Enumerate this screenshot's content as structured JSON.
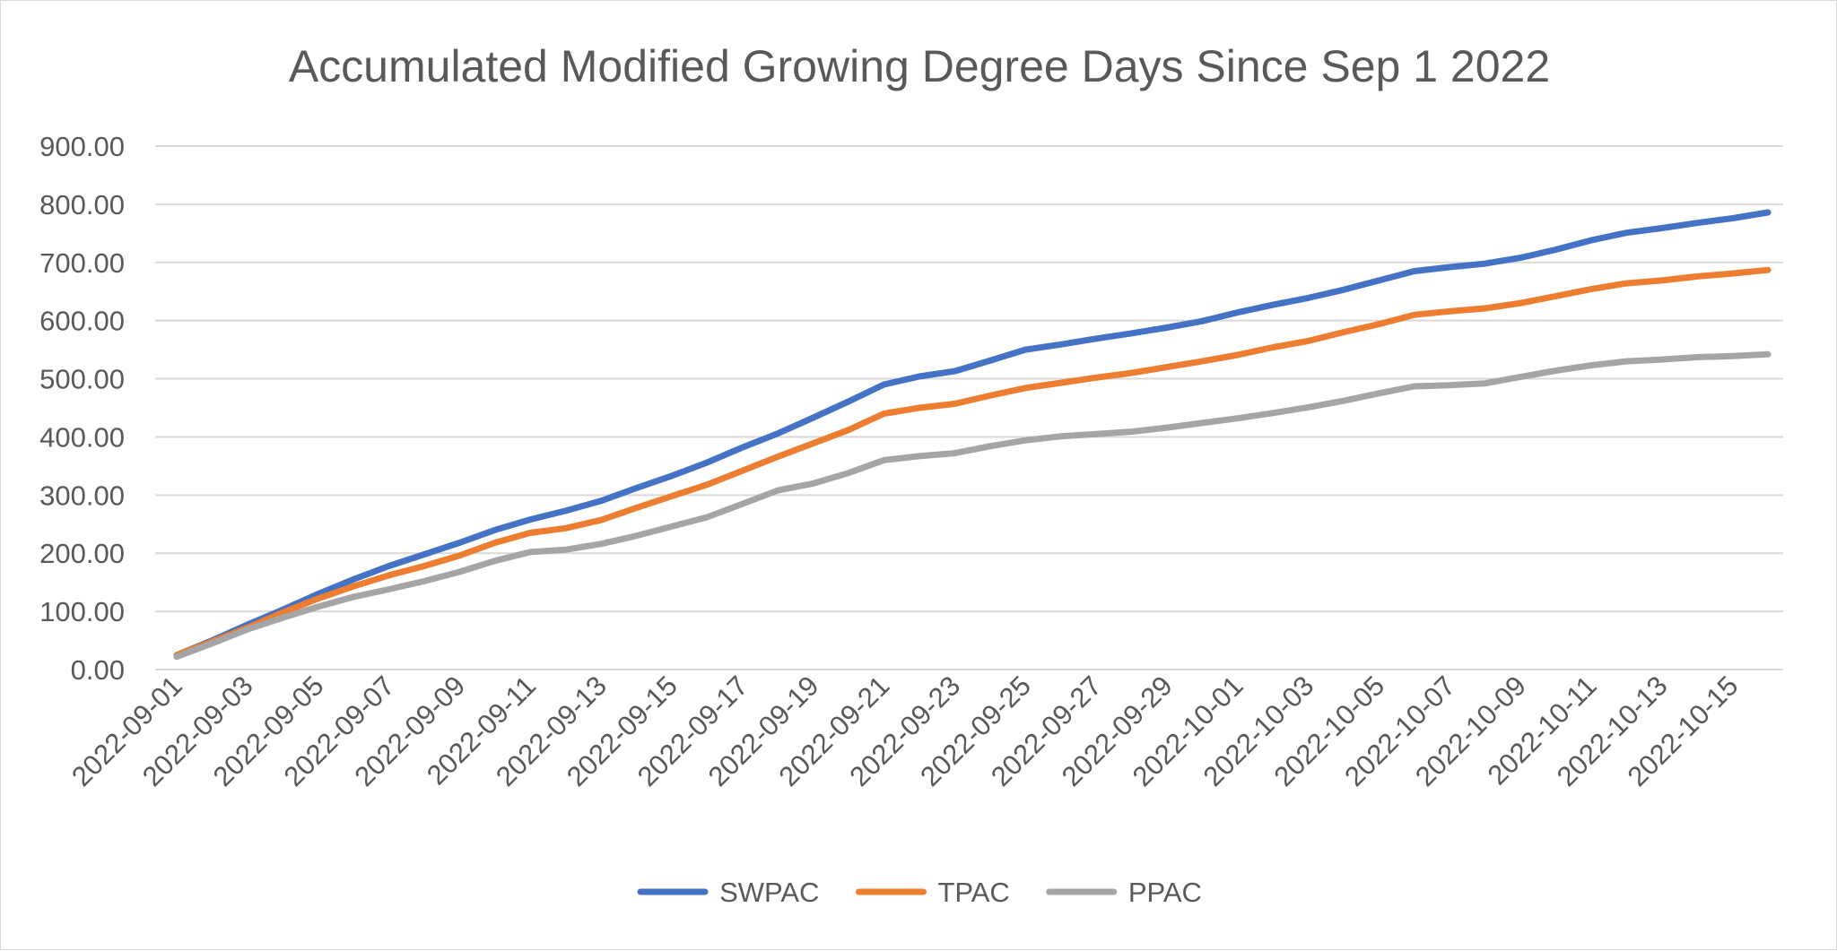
{
  "chart_data": {
    "type": "line",
    "title": "Accumulated Modified Growing Degree Days Since Sep 1 2022",
    "xlabel": "",
    "ylabel": "",
    "ylim": [
      0,
      900
    ],
    "y_ticks": [
      "0.00",
      "100.00",
      "200.00",
      "300.00",
      "400.00",
      "500.00",
      "600.00",
      "700.00",
      "800.00",
      "900.00"
    ],
    "y_tick_values": [
      0,
      100,
      200,
      300,
      400,
      500,
      600,
      700,
      800,
      900
    ],
    "grid": true,
    "legend": "bottom",
    "x": [
      "2022-09-01",
      "2022-09-02",
      "2022-09-03",
      "2022-09-04",
      "2022-09-05",
      "2022-09-06",
      "2022-09-07",
      "2022-09-08",
      "2022-09-09",
      "2022-09-10",
      "2022-09-11",
      "2022-09-12",
      "2022-09-13",
      "2022-09-14",
      "2022-09-15",
      "2022-09-16",
      "2022-09-17",
      "2022-09-18",
      "2022-09-19",
      "2022-09-20",
      "2022-09-21",
      "2022-09-22",
      "2022-09-23",
      "2022-09-24",
      "2022-09-25",
      "2022-09-26",
      "2022-09-27",
      "2022-09-28",
      "2022-09-29",
      "2022-09-30",
      "2022-10-01",
      "2022-10-02",
      "2022-10-03",
      "2022-10-04",
      "2022-10-05",
      "2022-10-06",
      "2022-10-07",
      "2022-10-08",
      "2022-10-09",
      "2022-10-10",
      "2022-10-11",
      "2022-10-12",
      "2022-10-13",
      "2022-10-14",
      "2022-10-15",
      "2022-10-16"
    ],
    "x_tick_labels": [
      "2022-09-01",
      "2022-09-03",
      "2022-09-05",
      "2022-09-07",
      "2022-09-09",
      "2022-09-11",
      "2022-09-13",
      "2022-09-15",
      "2022-09-17",
      "2022-09-19",
      "2022-09-21",
      "2022-09-23",
      "2022-09-25",
      "2022-09-27",
      "2022-09-29",
      "2022-10-01",
      "2022-10-03",
      "2022-10-05",
      "2022-10-07",
      "2022-10-09",
      "2022-10-11",
      "2022-10-13",
      "2022-10-15"
    ],
    "series": [
      {
        "name": "SWPAC",
        "color": "#4472c4",
        "values": [
          25,
          50,
          77,
          103,
          130,
          155,
          178,
          198,
          218,
          240,
          258,
          273,
          290,
          312,
          333,
          356,
          382,
          406,
          433,
          461,
          490,
          504,
          513,
          531,
          550,
          559,
          569,
          578,
          588,
          599,
          614,
          627,
          639,
          653,
          669,
          685,
          692,
          698,
          708,
          722,
          738,
          751,
          759,
          768,
          776,
          786
        ]
      },
      {
        "name": "TPAC",
        "color": "#ed7d31",
        "values": [
          25,
          48,
          72,
          98,
          122,
          143,
          162,
          178,
          196,
          218,
          235,
          243,
          257,
          278,
          298,
          318,
          342,
          366,
          389,
          412,
          440,
          450,
          457,
          471,
          484,
          493,
          502,
          510,
          520,
          530,
          541,
          554,
          565,
          580,
          594,
          610,
          616,
          621,
          630,
          642,
          654,
          664,
          669,
          676,
          681,
          687
        ]
      },
      {
        "name": "PPAC",
        "color": "#a5a5a5",
        "values": [
          22,
          45,
          69,
          89,
          108,
          125,
          138,
          152,
          168,
          187,
          202,
          206,
          216,
          230,
          246,
          262,
          285,
          308,
          320,
          338,
          360,
          367,
          372,
          384,
          394,
          401,
          405,
          409,
          416,
          424,
          432,
          441,
          451,
          462,
          475,
          487,
          489,
          492,
          503,
          514,
          523,
          530,
          533,
          537,
          539,
          542
        ]
      }
    ]
  }
}
